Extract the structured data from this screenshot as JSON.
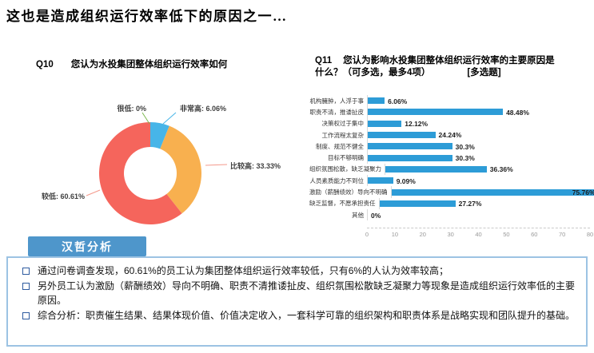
{
  "page": {
    "title": "这也是造成组织运行效率低下的原因之一…"
  },
  "q10": {
    "code": "Q10",
    "question": "您认为水投集团整体组织运行效率如何"
  },
  "q11": {
    "code": "Q11",
    "question_line1": "您认为影响水投集团整体组织运行效率的主要原因是",
    "question_line2": "什么？（可多选，最多4项）",
    "question_tag": "[多选题]"
  },
  "chart_data": [
    {
      "type": "pie",
      "donut": true,
      "title": "Q10 您认为水投集团整体组织运行效率如何",
      "labels": [
        "很低",
        "非常高",
        "比较高",
        "较低"
      ],
      "values": [
        0,
        6.06,
        33.33,
        60.61
      ],
      "display": [
        "很低: 0%",
        "非常高: 6.06%",
        "比较高: 33.33%",
        "较低: 60.61%"
      ],
      "colors": [
        "#7cb94f",
        "#47b5e8",
        "#f8b04f",
        "#f5655c"
      ],
      "leader_color": "#f4998b"
    },
    {
      "type": "bar",
      "orientation": "horizontal",
      "title": "Q11 您认为影响水投集团整体组织运行效率的主要原因是什么？（可多选，最多4项）[多选题]",
      "categories": [
        "机构臃肿，人浮于事",
        "职责不清，推诿扯皮",
        "决策权过于集中",
        "工作流程太复杂",
        "制度、规范不健全",
        "目标不够明确",
        "组织氛围松散，缺乏凝聚力",
        "人员素质能力不到位",
        "激励（薪酬绩效）导向不明确",
        "缺乏监督，不愿承担责任",
        "其他"
      ],
      "values": [
        6.06,
        48.48,
        12.12,
        24.24,
        30.3,
        30.3,
        36.36,
        9.09,
        75.76,
        27.27,
        0
      ],
      "value_labels": [
        "6.06%",
        "48.48%",
        "12.12%",
        "24.24%",
        "30.3%",
        "30.3%",
        "36.36%",
        "9.09%",
        "75.76%",
        "27.27%",
        "0%"
      ],
      "xlim": [
        0,
        80
      ],
      "xticks": [
        0,
        10,
        20,
        30,
        40,
        50,
        60,
        70,
        80
      ],
      "bar_color": "#2d9cd7",
      "grid": false,
      "legend": "none"
    }
  ],
  "analysis": {
    "header": "汉哲分析",
    "accent_color": "#4e96cb",
    "box_border_color": "#9cc3e3",
    "bullet_marker_color": "#2e5b9f",
    "bullets": [
      "通过问卷调查发现，60.61%的员工认为集团整体组织运行效率较低，只有6%的人认为效率较高；",
      "另外员工认为激励（薪酬绩效）导向不明确、职责不清推诿扯皮、组织氛围松散缺乏凝聚力等现象是造成组织运行效率低的主要原因。",
      "综合分析：职责催生结果、结果体现价值、价值决定收入，一套科学可靠的组织架构和职责体系是战略实现和团队提升的基础。"
    ]
  }
}
